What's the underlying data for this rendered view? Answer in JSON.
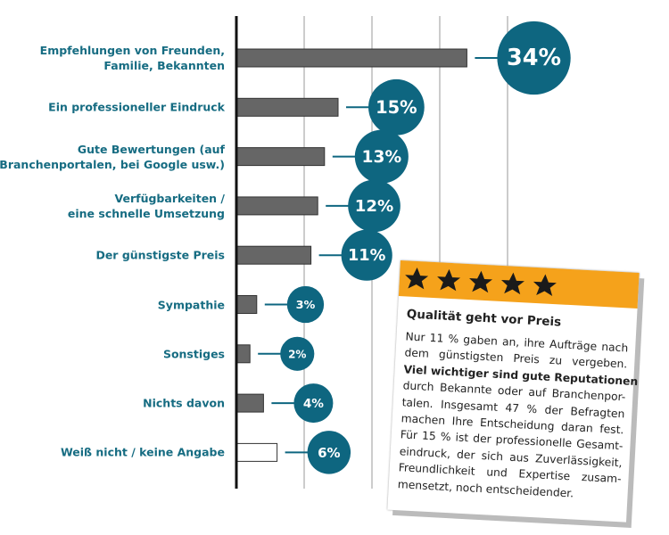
{
  "chart_data": {
    "type": "bar",
    "categories": [
      "Empfehlungen von Freunden,\nFamilie, Bekannten",
      "Ein professioneller Eindruck",
      "Gute Bewertungen (auf\nBranchenportalen, bei Google usw.)",
      "Verfügbarkeiten /\neine schnelle Umsetzung",
      "Der günstigste Preis",
      "Sympathie",
      "Sonstiges",
      "Nichts davon",
      "Weiß nicht / keine Angabe"
    ],
    "values": [
      34,
      15,
      13,
      12,
      11,
      3,
      2,
      4,
      6
    ],
    "value_labels": [
      "34%",
      "15%",
      "13%",
      "12%",
      "11%",
      "3%",
      "2%",
      "4%",
      "6%"
    ],
    "colors": [
      "#666666",
      "#666666",
      "#666666",
      "#666666",
      "#666666",
      "#666666",
      "#666666",
      "#666666",
      "#ffffff"
    ],
    "label_color": "#166c82",
    "bubble_color": "#0e6680",
    "xlim": [
      0,
      50
    ],
    "xticks": [
      10,
      20,
      30,
      40
    ],
    "grid": true
  },
  "note": {
    "title": "Qualität geht vor Preis",
    "lines": [
      {
        "text": "Nur 11 % gaben an, ihre Aufträge nach"
      },
      {
        "text": "dem günstigsten Preis zu vergeben."
      },
      {
        "text": "Viel wichtiger sind gute Reputationen",
        "bold": true
      },
      {
        "text": "durch Bekannte oder auf Branchenpor-"
      },
      {
        "text": "talen. Insgesamt 47 % der Befragten"
      },
      {
        "text": "machen Ihre Entscheidung daran fest."
      },
      {
        "text": "Für 15 % ist der professionelle Gesamt-"
      },
      {
        "text": "eindruck, der sich aus Zuverlässigkeit,"
      },
      {
        "text": "Freundlichkeit und Expertise zusam-"
      },
      {
        "text": "mensetzt, noch entscheidender."
      }
    ]
  }
}
